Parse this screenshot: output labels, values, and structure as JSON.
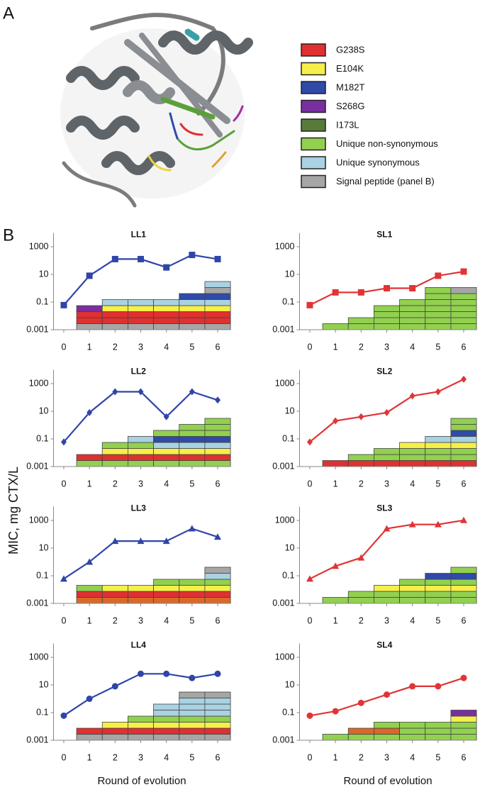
{
  "panel_labels": [
    "A",
    "B"
  ],
  "legend": {
    "labels": [
      "G238S",
      "E104K",
      "M182T",
      "S268G",
      "I173L",
      "Unique non-synonymous",
      "Unique synonymous",
      "Signal peptide (panel B)"
    ],
    "colors": [
      "#e03030",
      "#f5ef4a",
      "#2f4aa8",
      "#7a2fa0",
      "#5a7a3a",
      "#92d050",
      "#a9d2e3",
      "#a6a6a6"
    ]
  },
  "y_label": "MIC, mg CTX/L",
  "x_label": "Round of evolution",
  "chart_data": [
    {
      "type": "line",
      "title": "LL1",
      "color": "#2f45a8",
      "marker": "square",
      "log_scale": true,
      "x": [
        0,
        1,
        2,
        3,
        4,
        5,
        6
      ],
      "xlim": [
        -0.4,
        6.5
      ],
      "xticks": [
        0,
        1,
        2,
        3,
        4,
        5,
        6
      ],
      "ylim": [
        0.001,
        10000
      ],
      "yticks": [
        0.001,
        0.1,
        10,
        1000
      ],
      "values": [
        0.06,
        8,
        128,
        128,
        32,
        256,
        128
      ],
      "mutation_stacks": [
        [
          "#a6a6a6",
          "#e03030",
          "#e03030",
          "#7a2fa0"
        ],
        [
          "#a6a6a6",
          "#e03030",
          "#e03030",
          "#f5ef4a",
          "#a9d2e3"
        ],
        [
          "#a6a6a6",
          "#e03030",
          "#e03030",
          "#f5ef4a",
          "#a9d2e3"
        ],
        [
          "#a6a6a6",
          "#e03030",
          "#e03030",
          "#f5ef4a",
          "#a9d2e3"
        ],
        [
          "#a6a6a6",
          "#e03030",
          "#e03030",
          "#f5ef4a",
          "#a9d2e3",
          "#2f4aa8"
        ],
        [
          "#a6a6a6",
          "#e03030",
          "#e03030",
          "#f5ef4a",
          "#a9d2e3",
          "#2f4aa8",
          "#a6a6a6",
          "#a9d2e3"
        ]
      ]
    },
    {
      "type": "line",
      "title": "SL1",
      "color": "#e03535",
      "marker": "square",
      "log_scale": true,
      "x": [
        0,
        1,
        2,
        3,
        4,
        5,
        6
      ],
      "xlim": [
        -0.4,
        6.5
      ],
      "xticks": [
        0,
        1,
        2,
        3,
        4,
        5,
        6
      ],
      "ylim": [
        0.001,
        10000
      ],
      "yticks": [
        0.001,
        0.1,
        10,
        1000
      ],
      "values": [
        0.06,
        0.5,
        0.5,
        1,
        1,
        8,
        16
      ],
      "mutation_stacks": [
        [
          "#92d050"
        ],
        [
          "#92d050",
          "#92d050"
        ],
        [
          "#92d050",
          "#92d050",
          "#92d050",
          "#92d050"
        ],
        [
          "#92d050",
          "#92d050",
          "#92d050",
          "#92d050",
          "#92d050"
        ],
        [
          "#92d050",
          "#92d050",
          "#92d050",
          "#92d050",
          "#92d050",
          "#92d050",
          "#92d050"
        ],
        [
          "#92d050",
          "#92d050",
          "#92d050",
          "#92d050",
          "#92d050",
          "#92d050",
          "#a6a6a6"
        ]
      ]
    },
    {
      "type": "line",
      "title": "LL2",
      "color": "#2f45a8",
      "marker": "diamond",
      "log_scale": true,
      "x": [
        0,
        1,
        2,
        3,
        4,
        5,
        6
      ],
      "xlim": [
        -0.4,
        6.5
      ],
      "xticks": [
        0,
        1,
        2,
        3,
        4,
        5,
        6
      ],
      "ylim": [
        0.001,
        10000
      ],
      "yticks": [
        0.001,
        0.1,
        10,
        1000
      ],
      "values": [
        0.06,
        8,
        256,
        256,
        4,
        256,
        64
      ],
      "mutation_stacks": [
        [
          "#92d050",
          "#e03030"
        ],
        [
          "#92d050",
          "#e03030",
          "#f5ef4a",
          "#92d050"
        ],
        [
          "#92d050",
          "#e03030",
          "#f5ef4a",
          "#92d050",
          "#a9d2e3"
        ],
        [
          "#92d050",
          "#e03030",
          "#f5ef4a",
          "#a9d2e3",
          "#2f4aa8",
          "#92d050"
        ],
        [
          "#92d050",
          "#e03030",
          "#f5ef4a",
          "#a9d2e3",
          "#2f4aa8",
          "#92d050",
          "#92d050"
        ],
        [
          "#92d050",
          "#e03030",
          "#f5ef4a",
          "#a9d2e3",
          "#2f4aa8",
          "#92d050",
          "#92d050",
          "#92d050"
        ]
      ]
    },
    {
      "type": "line",
      "title": "SL2",
      "color": "#e03535",
      "marker": "diamond",
      "log_scale": true,
      "x": [
        0,
        1,
        2,
        3,
        4,
        5,
        6
      ],
      "xlim": [
        -0.4,
        6.5
      ],
      "xticks": [
        0,
        1,
        2,
        3,
        4,
        5,
        6
      ],
      "ylim": [
        0.001,
        10000
      ],
      "yticks": [
        0.001,
        0.1,
        10,
        1000
      ],
      "values": [
        0.06,
        2,
        4,
        8,
        128,
        256,
        2048
      ],
      "mutation_stacks": [
        [
          "#e03030"
        ],
        [
          "#e03030",
          "#92d050"
        ],
        [
          "#e03030",
          "#92d050",
          "#92d050"
        ],
        [
          "#e03030",
          "#92d050",
          "#92d050",
          "#f5ef4a"
        ],
        [
          "#e03030",
          "#92d050",
          "#92d050",
          "#f5ef4a",
          "#a9d2e3"
        ],
        [
          "#e03030",
          "#92d050",
          "#92d050",
          "#f5ef4a",
          "#a9d2e3",
          "#2f4aa8",
          "#92d050",
          "#92d050"
        ]
      ]
    },
    {
      "type": "line",
      "title": "LL3",
      "color": "#2f45a8",
      "marker": "triangle",
      "log_scale": true,
      "x": [
        0,
        1,
        2,
        3,
        4,
        5,
        6
      ],
      "xlim": [
        -0.4,
        6.5
      ],
      "xticks": [
        0,
        1,
        2,
        3,
        4,
        5,
        6
      ],
      "ylim": [
        0.001,
        10000
      ],
      "yticks": [
        0.001,
        0.1,
        10,
        1000
      ],
      "values": [
        0.06,
        1,
        32,
        32,
        32,
        256,
        64
      ],
      "mutation_stacks": [
        [
          "#d9692a",
          "#e03030",
          "#92d050"
        ],
        [
          "#d9692a",
          "#e03030",
          "#f5ef4a"
        ],
        [
          "#d9692a",
          "#e03030",
          "#f5ef4a"
        ],
        [
          "#d9692a",
          "#e03030",
          "#f5ef4a",
          "#92d050"
        ],
        [
          "#d9692a",
          "#e03030",
          "#f5ef4a",
          "#92d050"
        ],
        [
          "#d9692a",
          "#e03030",
          "#f5ef4a",
          "#92d050",
          "#a9d2e3",
          "#a6a6a6"
        ]
      ]
    },
    {
      "type": "line",
      "title": "SL3",
      "color": "#e03535",
      "marker": "triangle",
      "log_scale": true,
      "x": [
        0,
        1,
        2,
        3,
        4,
        5,
        6
      ],
      "xlim": [
        -0.4,
        6.5
      ],
      "xticks": [
        0,
        1,
        2,
        3,
        4,
        5,
        6
      ],
      "ylim": [
        0.001,
        10000
      ],
      "yticks": [
        0.001,
        0.1,
        10,
        1000
      ],
      "values": [
        0.06,
        0.5,
        2,
        256,
        512,
        512,
        1024
      ],
      "mutation_stacks": [
        [
          "#92d050"
        ],
        [
          "#92d050",
          "#92d050"
        ],
        [
          "#92d050",
          "#92d050",
          "#f5ef4a"
        ],
        [
          "#92d050",
          "#92d050",
          "#f5ef4a",
          "#92d050"
        ],
        [
          "#92d050",
          "#92d050",
          "#f5ef4a",
          "#92d050",
          "#2f4aa8"
        ],
        [
          "#92d050",
          "#92d050",
          "#f5ef4a",
          "#92d050",
          "#2f4aa8",
          "#92d050"
        ]
      ]
    },
    {
      "type": "line",
      "title": "LL4",
      "color": "#2f45a8",
      "marker": "circle",
      "log_scale": true,
      "x": [
        0,
        1,
        2,
        3,
        4,
        5,
        6
      ],
      "xlim": [
        -0.4,
        6.5
      ],
      "xticks": [
        0,
        1,
        2,
        3,
        4,
        5,
        6
      ],
      "ylim": [
        0.001,
        10000
      ],
      "yticks": [
        0.001,
        0.1,
        10,
        1000
      ],
      "values": [
        0.06,
        1,
        8,
        64,
        64,
        32,
        64
      ],
      "mutation_stacks": [
        [
          "#a6a6a6",
          "#e03030"
        ],
        [
          "#a6a6a6",
          "#e03030",
          "#f5ef4a"
        ],
        [
          "#a6a6a6",
          "#e03030",
          "#f5ef4a",
          "#92d050"
        ],
        [
          "#a6a6a6",
          "#e03030",
          "#f5ef4a",
          "#92d050",
          "#a9d2e3",
          "#a9d2e3"
        ],
        [
          "#a6a6a6",
          "#e03030",
          "#f5ef4a",
          "#92d050",
          "#a9d2e3",
          "#a9d2e3",
          "#a9d2e3",
          "#a6a6a6"
        ],
        [
          "#a6a6a6",
          "#e03030",
          "#f5ef4a",
          "#92d050",
          "#a9d2e3",
          "#a9d2e3",
          "#a9d2e3",
          "#a6a6a6"
        ]
      ]
    },
    {
      "type": "line",
      "title": "SL4",
      "color": "#e03535",
      "marker": "circle",
      "log_scale": true,
      "x": [
        0,
        1,
        2,
        3,
        4,
        5,
        6
      ],
      "xlim": [
        -0.4,
        6.5
      ],
      "xticks": [
        0,
        1,
        2,
        3,
        4,
        5,
        6
      ],
      "ylim": [
        0.001,
        10000
      ],
      "yticks": [
        0.001,
        0.1,
        10,
        1000
      ],
      "values": [
        0.06,
        0.125,
        0.5,
        2,
        8,
        8,
        32
      ],
      "mutation_stacks": [
        [
          "#92d050"
        ],
        [
          "#92d050",
          "#d9692a"
        ],
        [
          "#92d050",
          "#d9692a",
          "#92d050"
        ],
        [
          "#92d050",
          "#92d050",
          "#92d050"
        ],
        [
          "#92d050",
          "#92d050",
          "#92d050"
        ],
        [
          "#92d050",
          "#92d050",
          "#92d050",
          "#f5ef4a",
          "#7a2fa0"
        ]
      ]
    }
  ]
}
